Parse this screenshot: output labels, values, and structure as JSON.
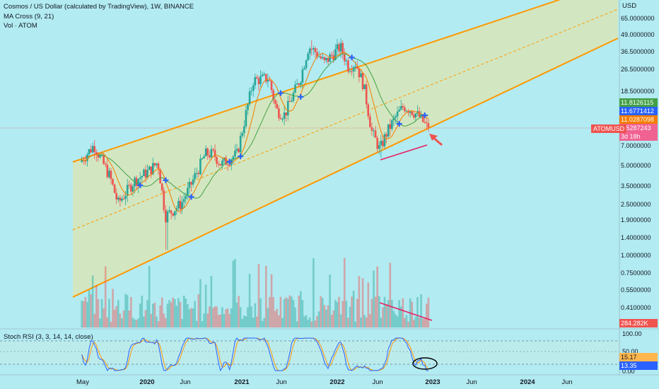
{
  "header": {
    "title": "Cosmos / US Dollar (calculated by TradingView), 1W, BINANCE",
    "ma_indicator": "MA Cross (9, 21)",
    "volume_indicator": "Vol · ATOM"
  },
  "price_axis": {
    "currency": "USD",
    "labels": [
      "65.0000000",
      "49.0000000",
      "36.5000000",
      "26.5000000",
      "18.5000000",
      "7.0000000",
      "5.0000000",
      "3.5000000",
      "2.5000000",
      "1.9000000",
      "1.4000000",
      "1.0000000",
      "0.7500000",
      "0.5500000",
      "0.4100000"
    ]
  },
  "badges": {
    "ma_long": "11.8126115",
    "ma_short": "11.6771412",
    "open": "11.0287098",
    "last": "9.5287243",
    "countdown": "3d 18h",
    "volume": "284.282K",
    "symbol": "ATOMUSD"
  },
  "rsi": {
    "legend": "Stoch RSI (3, 3, 14, 14, close)",
    "ticks": [
      "100.00",
      "50.00",
      "0.00"
    ],
    "k_value": "15.17",
    "d_value": "13.35"
  },
  "time_axis": [
    "May",
    "2020",
    "Jun",
    "2021",
    "Jun",
    "2022",
    "Jun",
    "2023",
    "Jun",
    "2024",
    "Jun"
  ],
  "colors": {
    "background": "#b2ebf2",
    "channel": "#ff9800",
    "up": "#26a69a",
    "down": "#ef5350",
    "ma_short": "#f57c00",
    "ma_long": "#43a047",
    "marker": "#2962ff",
    "annotation": "#e91e63",
    "rsi_k": "#2962ff",
    "rsi_d": "#ff9800"
  },
  "chart_data": {
    "type": "candlestick",
    "scale": "log",
    "interval": "1W",
    "ylim": [
      0.3,
      80
    ],
    "key_prices": {
      "all_time_high": 44.7,
      "march_2020_low": 1.1,
      "june_2022_low": 5.6,
      "last": 9.53,
      "ma_9": 11.68,
      "ma_21": 11.81
    },
    "price_path": [
      {
        "date": "2019-04",
        "price": 5.0
      },
      {
        "date": "2019-06",
        "price": 7.0
      },
      {
        "date": "2019-08",
        "price": 4.0
      },
      {
        "date": "2019-09",
        "price": 2.5
      },
      {
        "date": "2019-11",
        "price": 3.7
      },
      {
        "date": "2020-01",
        "price": 4.5
      },
      {
        "date": "2020-02",
        "price": 5.2
      },
      {
        "date": "2020-03",
        "price": 2.0
      },
      {
        "date": "2020-05",
        "price": 2.5
      },
      {
        "date": "2020-06",
        "price": 3.3
      },
      {
        "date": "2020-08",
        "price": 6.0
      },
      {
        "date": "2020-09",
        "price": 6.0
      },
      {
        "date": "2020-10",
        "price": 5.0
      },
      {
        "date": "2020-12",
        "price": 6.0
      },
      {
        "date": "2021-02",
        "price": 22.0
      },
      {
        "date": "2021-04",
        "price": 23.0
      },
      {
        "date": "2021-05",
        "price": 13.0
      },
      {
        "date": "2021-06",
        "price": 12.0
      },
      {
        "date": "2021-08",
        "price": 23.0
      },
      {
        "date": "2021-09",
        "price": 40.0
      },
      {
        "date": "2021-10",
        "price": 36.0
      },
      {
        "date": "2021-11",
        "price": 30.0
      },
      {
        "date": "2022-01",
        "price": 40.0
      },
      {
        "date": "2022-02",
        "price": 28.0
      },
      {
        "date": "2022-03",
        "price": 30.0
      },
      {
        "date": "2022-04",
        "price": 20.0
      },
      {
        "date": "2022-05",
        "price": 9.0
      },
      {
        "date": "2022-06",
        "price": 6.5
      },
      {
        "date": "2022-07",
        "price": 9.0
      },
      {
        "date": "2022-08",
        "price": 11.5
      },
      {
        "date": "2022-09",
        "price": 14.0
      },
      {
        "date": "2022-10",
        "price": 13.0
      },
      {
        "date": "2022-11",
        "price": 11.5
      },
      {
        "date": "2022-12",
        "price": 9.53
      }
    ]
  }
}
